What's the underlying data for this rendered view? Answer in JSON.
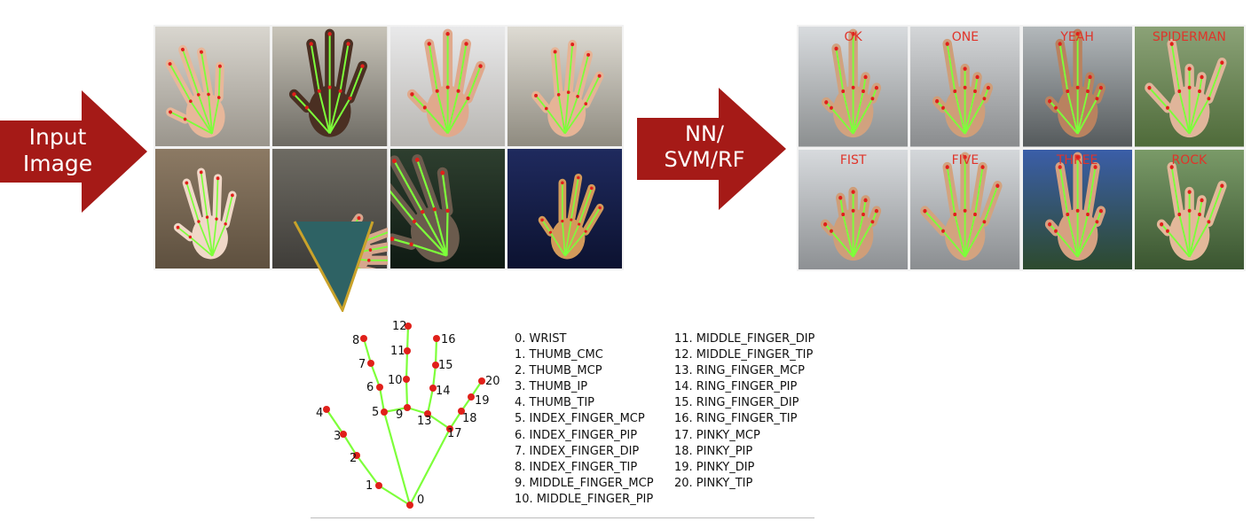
{
  "arrows": {
    "input": {
      "label_line1": "Input",
      "label_line2": "Image"
    },
    "classifier": {
      "label_line1": "NN/",
      "label_line2": "SVM/RF"
    }
  },
  "colors": {
    "arrow_red": "#a51a17",
    "skeleton_green": "#7dff3a",
    "landmark_red": "#e0201a",
    "label_red": "#e0342a",
    "callout_gold": "#c9a22a",
    "callout_teal": "#2e6264"
  },
  "input_tiles": [
    {
      "name": "office-hand-1"
    },
    {
      "name": "dark-hand-ok"
    },
    {
      "name": "office-hand-spread"
    },
    {
      "name": "office-hand-rock"
    },
    {
      "name": "rock-wall-hand"
    },
    {
      "name": "gray-hand-callout"
    },
    {
      "name": "tree-hand"
    },
    {
      "name": "blue-hand"
    }
  ],
  "output_gestures": [
    "OK",
    "ONE",
    "YEAH",
    "SPIDERMAN",
    "FIST",
    "FIVE",
    "THREE",
    "ROCK"
  ],
  "landmarks": {
    "column1": [
      "0. WRIST",
      "1. THUMB_CMC",
      "2. THUMB_MCP",
      "3. THUMB_IP",
      "4. THUMB_TIP",
      "5. INDEX_FINGER_MCP",
      "6. INDEX_FINGER_PIP",
      "7. INDEX_FINGER_DIP",
      "8. INDEX_FINGER_TIP",
      "9. MIDDLE_FINGER_MCP",
      "10. MIDDLE_FINGER_PIP"
    ],
    "column2": [
      "11. MIDDLE_FINGER_DIP",
      "12. MIDDLE_FINGER_TIP",
      "13. RING_FINGER_MCP",
      "14. RING_FINGER_PIP",
      "15. RING_FINGER_DIP",
      "16. RING_FINGER_TIP",
      "17. PINKY_MCP",
      "18. PINKY_PIP",
      "19. PINKY_DIP",
      "20. PINKY_TIP"
    ],
    "point_numbers": [
      "0",
      "1",
      "2",
      "3",
      "4",
      "5",
      "6",
      "7",
      "8",
      "9",
      "10",
      "11",
      "12",
      "13",
      "14",
      "15",
      "16",
      "17",
      "18",
      "19",
      "20"
    ]
  }
}
